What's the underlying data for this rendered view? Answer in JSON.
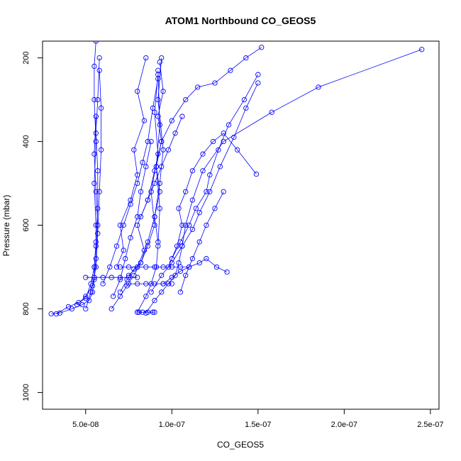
{
  "chart_data": {
    "type": "line",
    "title": "ATOM1 Northbound CO_GEOS5",
    "xlabel": "CO_GEOS5",
    "ylabel": "Pressure (mbar)",
    "xlim": [
      2.5e-08,
      2.55e-07
    ],
    "ylim": [
      1040,
      160
    ],
    "y_reversed": true,
    "grid": false,
    "legend": "none",
    "color": "#0000ff",
    "marker": "open-circle",
    "x_ticks": [
      {
        "value": 5e-08,
        "label": "5.0e-08"
      },
      {
        "value": 1e-07,
        "label": "1.0e-07"
      },
      {
        "value": 1.5e-07,
        "label": "1.5e-07"
      },
      {
        "value": 2e-07,
        "label": "2.0e-07"
      },
      {
        "value": 2.5e-07,
        "label": "2.5e-07"
      }
    ],
    "y_ticks": [
      {
        "value": 200,
        "label": "200"
      },
      {
        "value": 400,
        "label": "400"
      },
      {
        "value": 600,
        "label": "600"
      },
      {
        "value": 800,
        "label": "800"
      },
      {
        "value": 1000,
        "label": "1000"
      }
    ],
    "series": [
      {
        "x": [
          3e-08,
          3.5e-08,
          4.2e-08,
          4.8e-08,
          5.2e-08,
          5.4e-08,
          5.5e-08,
          5.5e-08,
          5.6e-08,
          5.6e-08,
          5.5e-08,
          5.6e-08,
          5.5e-08,
          5.5e-08,
          5.6e-08
        ],
        "y": [
          812,
          810,
          800,
          790,
          780,
          760,
          730,
          700,
          650,
          600,
          500,
          400,
          300,
          220,
          160
        ]
      },
      {
        "x": [
          3.3e-08,
          4e-08,
          4.6e-08,
          5e-08,
          5.3e-08,
          5.5e-08,
          5.6e-08,
          5.7e-08,
          5.7e-08,
          5.6e-08,
          5.7e-08,
          5.8e-08
        ],
        "y": [
          812,
          795,
          785,
          775,
          740,
          700,
          640,
          560,
          470,
          380,
          300,
          200
        ]
      },
      {
        "x": [
          4.5e-08,
          5e-08,
          5.4e-08,
          5.6e-08,
          5.7e-08,
          5.8e-08,
          5.9e-08,
          5.9e-08,
          5.8e-08
        ],
        "y": [
          790,
          770,
          745,
          700,
          620,
          520,
          420,
          320,
          230
        ]
      },
      {
        "x": [
          5e-08,
          5.3e-08,
          5.5e-08,
          5.6e-08,
          5.7e-08,
          5.6e-08,
          5.5e-08,
          5.6e-08
        ],
        "y": [
          800,
          760,
          725,
          680,
          600,
          520,
          430,
          340
        ]
      },
      {
        "x": [
          6.5e-08,
          7e-08,
          7.4e-08,
          7.8e-08,
          8.2e-08,
          8.6e-08,
          9e-08,
          9.3e-08,
          9.5e-08,
          9.2e-08,
          9.4e-08
        ],
        "y": [
          800,
          770,
          745,
          720,
          690,
          640,
          580,
          500,
          420,
          300,
          200
        ]
      },
      {
        "x": [
          8e-08,
          8.5e-08,
          8.8e-08,
          9.1e-08,
          9.2e-08,
          9.3e-08,
          9.1e-08,
          9.3e-08,
          9.2e-08
        ],
        "y": [
          808,
          770,
          740,
          700,
          650,
          560,
          460,
          360,
          230
        ]
      },
      {
        "x": [
          8.5e-08,
          9e-08,
          9.4e-08,
          9.8e-08,
          1.02e-07,
          1.04e-07,
          1.06e-07,
          1.08e-07,
          1.12e-07,
          1.18e-07,
          1.3e-07,
          1.58e-07,
          1.85e-07,
          2.45e-07
        ],
        "y": [
          810,
          780,
          760,
          740,
          720,
          690,
          650,
          600,
          540,
          470,
          400,
          330,
          270,
          180
        ]
      },
      {
        "x": [
          7e-08,
          7.4e-08,
          7.8e-08,
          8.2e-08,
          8.6e-08,
          9e-08,
          8.8e-08,
          9.2e-08,
          9e-08,
          9.2e-08
        ],
        "y": [
          760,
          730,
          705,
          690,
          650,
          600,
          520,
          430,
          330,
          240
        ]
      },
      {
        "x": [
          9.5e-08,
          1e-07,
          1.05e-07,
          1.1e-07,
          1.16e-07,
          1.2e-07,
          1.26e-07,
          1.32e-07
        ],
        "y": [
          740,
          725,
          710,
          700,
          690,
          680,
          700,
          712
        ]
      },
      {
        "x": [
          7.5e-08,
          8e-08,
          8.4e-08,
          8e-08,
          8.6e-08,
          9e-08,
          9.4e-08,
          1e-07,
          1.08e-07,
          1.15e-07,
          1.25e-07,
          1.34e-07,
          1.43e-07,
          1.52e-07
        ],
        "y": [
          720,
          700,
          660,
          600,
          540,
          470,
          400,
          350,
          300,
          270,
          260,
          230,
          200,
          175
        ]
      },
      {
        "x": [
          6.8e-08,
          7.2e-08,
          7e-08,
          7.6e-08,
          8e-08,
          7.8e-08,
          8.4e-08,
          8e-08,
          8.5e-08
        ],
        "y": [
          700,
          660,
          600,
          540,
          480,
          420,
          350,
          280,
          200
        ]
      },
      {
        "x": [
          9.8e-08,
          1.03e-07,
          1.06e-07,
          1.04e-07,
          1.08e-07,
          1.12e-07,
          1.18e-07,
          1.24e-07,
          1.3e-07,
          1.38e-07,
          1.49e-07
        ],
        "y": [
          700,
          650,
          600,
          560,
          520,
          470,
          430,
          400,
          380,
          420,
          478
        ]
      },
      {
        "x": [
          1e-07,
          1.05e-07,
          1.1e-07,
          1.14e-07,
          1.2e-07,
          1.22e-07,
          1.27e-07,
          1.33e-07,
          1.42e-07,
          1.5e-07
        ],
        "y": [
          680,
          640,
          600,
          560,
          520,
          480,
          420,
          360,
          300,
          240
        ]
      },
      {
        "x": [
          6e-08,
          6.4e-08,
          6.8e-08,
          7.2e-08,
          7.6e-08,
          8e-08,
          8.3e-08,
          8.6e-08,
          8.9e-08,
          9.2e-08
        ],
        "y": [
          740,
          700,
          650,
          600,
          550,
          500,
          450,
          400,
          320,
          250
        ]
      },
      {
        "x": [
          8.8e-08,
          9.4e-08,
          1e-07,
          1.06e-07,
          1.12e-07,
          1.16e-07,
          1.22e-07,
          1.28e-07,
          1.36e-07,
          1.43e-07,
          1.5e-07
        ],
        "y": [
          760,
          720,
          690,
          650,
          610,
          570,
          520,
          460,
          390,
          320,
          260
        ]
      },
      {
        "x": [
          7e-08,
          7.5e-08,
          8e-08,
          8.5e-08,
          9e-08,
          9.5e-08,
          1e-07,
          1.05e-07,
          1.1e-07
        ],
        "y": [
          700,
          700,
          700,
          700,
          700,
          700,
          700,
          700,
          700
        ]
      },
      {
        "x": [
          5e-08,
          5.5e-08,
          6e-08,
          6.5e-08,
          7e-08,
          7.5e-08,
          8e-08
        ],
        "y": [
          725,
          725,
          725,
          725,
          725,
          725,
          725
        ]
      },
      {
        "x": [
          7.5e-08,
          8e-08,
          8.5e-08,
          9e-08,
          9.5e-08,
          1e-07
        ],
        "y": [
          740,
          740,
          740,
          740,
          740,
          740
        ]
      },
      {
        "x": [
          9.2e-08,
          9e-08,
          9.3e-08,
          9.1e-08,
          9.4e-08,
          9.2e-08,
          9.5e-08,
          9.3e-08
        ],
        "y": [
          640,
          580,
          520,
          460,
          400,
          340,
          280,
          210
        ]
      },
      {
        "x": [
          1.05e-07,
          1.08e-07,
          1.12e-07,
          1.16e-07,
          1.2e-07,
          1.25e-07,
          1.3e-07
        ],
        "y": [
          760,
          720,
          680,
          640,
          600,
          560,
          520
        ]
      },
      {
        "x": [
          6.6e-08,
          7e-08,
          7.3e-08,
          7.6e-08,
          8e-08,
          8.2e-08,
          8.5e-08,
          8.8e-08
        ],
        "y": [
          770,
          730,
          680,
          630,
          580,
          520,
          460,
          400
        ]
      },
      {
        "x": [
          8.2e-08,
          8.6e-08,
          9e-08,
          9.4e-08,
          9.8e-08,
          1.02e-07,
          1.06e-07
        ],
        "y": [
          580,
          540,
          500,
          460,
          420,
          380,
          340
        ]
      },
      {
        "x": [
          8e-08,
          8.1e-08,
          8.3e-08,
          8.6e-08,
          8.9e-08,
          9e-08
        ],
        "y": [
          808,
          808,
          808,
          808,
          808,
          808
        ]
      }
    ]
  }
}
